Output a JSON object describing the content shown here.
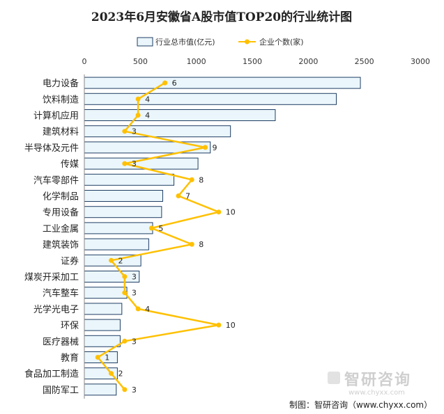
{
  "chart_data": {
    "type": "bar",
    "title": "2023年6月安徽省A股市值TOP20的行业统计图",
    "categories": [
      "电力设备",
      "饮料制造",
      "计算机应用",
      "建筑材料",
      "半导体及元件",
      "传媒",
      "汽车零部件",
      "化学制品",
      "专用设备",
      "工业金属",
      "建筑装饰",
      "证券",
      "煤炭开采加工",
      "汽车整车",
      "光学光电子",
      "环保",
      "医疗器械",
      "教育",
      "食品加工制造",
      "国防军工"
    ],
    "series": [
      {
        "name": "行业总市值(亿元)",
        "type": "bar",
        "values": [
          2465,
          2250,
          1705,
          1305,
          1125,
          1015,
          800,
          700,
          690,
          610,
          575,
          505,
          490,
          380,
          335,
          320,
          320,
          295,
          295,
          285
        ]
      },
      {
        "name": "企业个数(家)",
        "type": "line",
        "values": [
          6,
          4,
          4,
          3,
          9,
          3,
          8,
          7,
          10,
          5,
          8,
          2,
          3,
          3,
          4,
          10,
          3,
          1,
          2,
          3
        ]
      }
    ],
    "xlim": [
      0,
      3000
    ],
    "xticks": [
      "0",
      "500",
      "1000",
      "1500",
      "2000",
      "2500",
      "3000"
    ],
    "count_range": [
      0,
      25
    ],
    "grid": false,
    "legend_position": "top-center",
    "colors": {
      "bar_fill": "#eaf6fb",
      "bar_stroke": "#1f3d63",
      "line": "#ffc000"
    }
  },
  "watermark": {
    "brand": "智研咨询",
    "url": "www.chyxx.com"
  },
  "footer": "制图：智研咨询（www.chyxx.com）"
}
